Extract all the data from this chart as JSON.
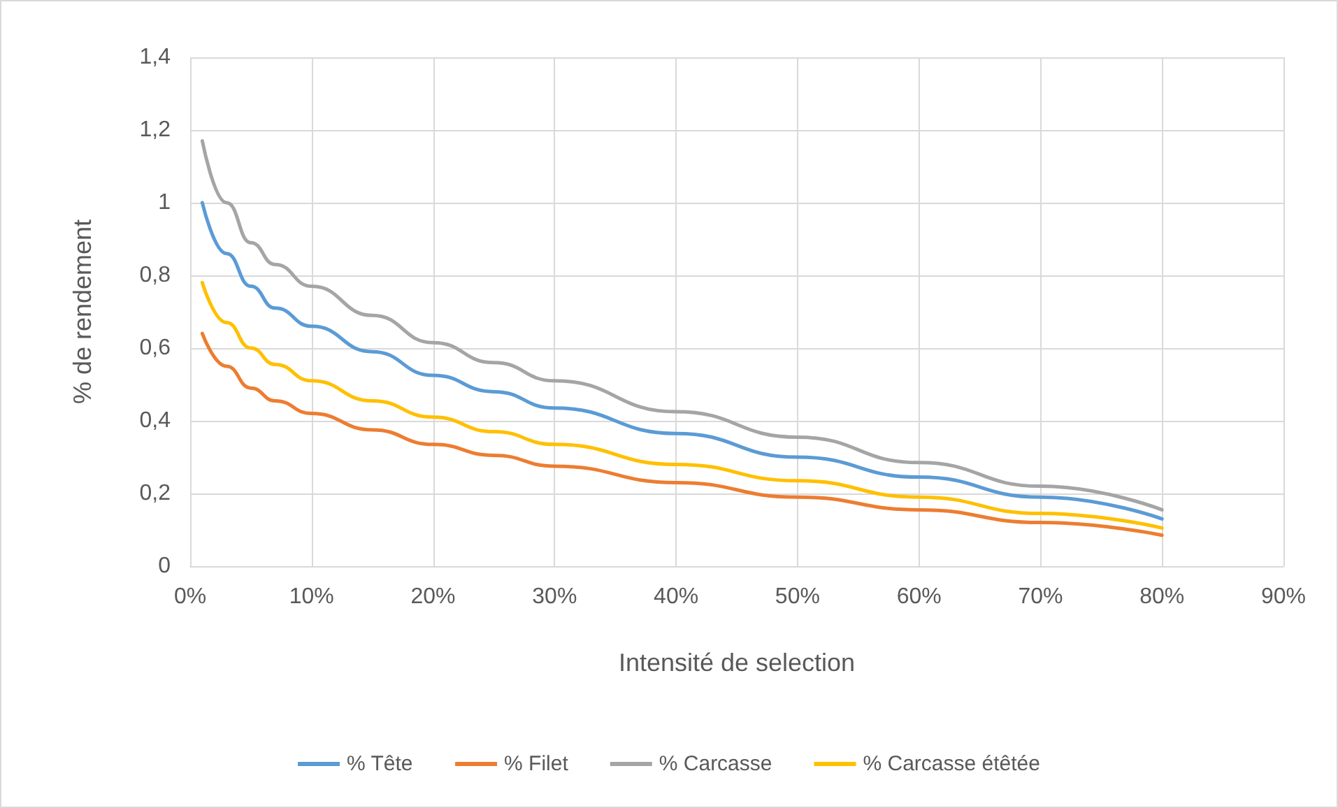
{
  "chart_data": {
    "type": "line",
    "xlabel": "Intensité de selection",
    "ylabel": "% de rendement",
    "x": [
      1,
      3,
      5,
      7,
      10,
      15,
      20,
      25,
      30,
      40,
      50,
      60,
      70,
      80
    ],
    "series": [
      {
        "name": "% Tête",
        "color": "#5b9bd5",
        "values": [
          1.0,
          0.86,
          0.77,
          0.71,
          0.66,
          0.59,
          0.525,
          0.48,
          0.435,
          0.365,
          0.3,
          0.245,
          0.19,
          0.13
        ]
      },
      {
        "name": "% Filet",
        "color": "#ed7d31",
        "values": [
          0.64,
          0.55,
          0.49,
          0.455,
          0.42,
          0.375,
          0.335,
          0.305,
          0.275,
          0.23,
          0.19,
          0.155,
          0.12,
          0.085
        ]
      },
      {
        "name": "% Carcasse",
        "color": "#a5a5a5",
        "values": [
          1.17,
          1.0,
          0.89,
          0.83,
          0.77,
          0.69,
          0.615,
          0.56,
          0.51,
          0.425,
          0.355,
          0.285,
          0.22,
          0.155
        ]
      },
      {
        "name": "% Carcasse étêtée",
        "color": "#ffc000",
        "values": [
          0.78,
          0.67,
          0.6,
          0.555,
          0.51,
          0.455,
          0.41,
          0.37,
          0.335,
          0.28,
          0.235,
          0.19,
          0.145,
          0.105
        ]
      }
    ],
    "xlim": [
      0,
      90
    ],
    "xticks": [
      {
        "value": 0,
        "label": "0%"
      },
      {
        "value": 10,
        "label": "10%"
      },
      {
        "value": 20,
        "label": "20%"
      },
      {
        "value": 30,
        "label": "30%"
      },
      {
        "value": 40,
        "label": "40%"
      },
      {
        "value": 50,
        "label": "50%"
      },
      {
        "value": 60,
        "label": "60%"
      },
      {
        "value": 70,
        "label": "70%"
      },
      {
        "value": 80,
        "label": "80%"
      },
      {
        "value": 90,
        "label": "90%"
      }
    ],
    "ylim": [
      0,
      1.4
    ],
    "yticks": [
      0,
      {
        "value": 0.2,
        "label": "0,2"
      },
      {
        "value": 0.4,
        "label": "0,4"
      },
      {
        "value": 0.6,
        "label": "0,6"
      },
      {
        "value": 0.8,
        "label": "0,8"
      },
      1,
      {
        "value": 1.2,
        "label": "1,2"
      },
      {
        "value": 1.4,
        "label": "1,4"
      }
    ],
    "grid": true,
    "legend": "bottom",
    "marker": "none",
    "line_style": "solid"
  }
}
